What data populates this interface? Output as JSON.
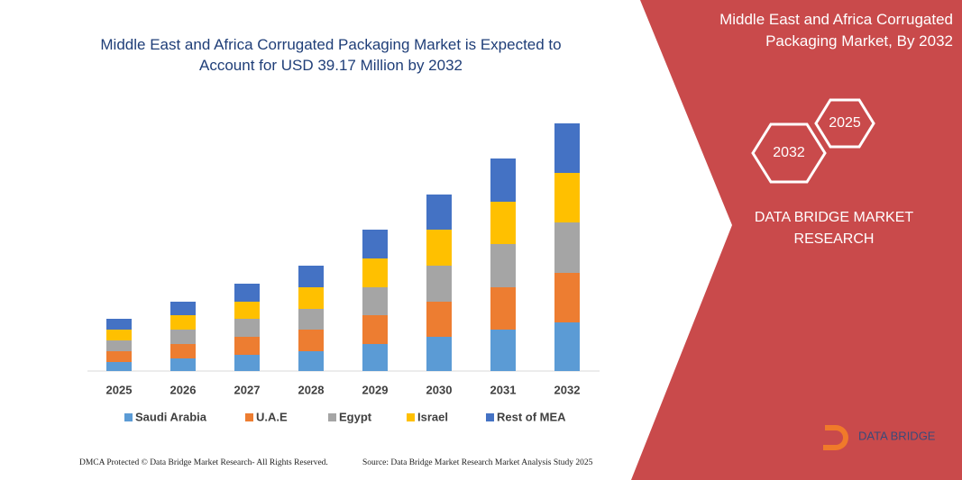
{
  "chart_data": {
    "type": "stacked-bar",
    "title": "Middle East and Africa Corrugated Packaging Market is Expected to Account for USD 39.17 Million by 2032",
    "categories": [
      "2025",
      "2026",
      "2027",
      "2028",
      "2029",
      "2030",
      "2031",
      "2032"
    ],
    "series": [
      {
        "name": "Saudi Arabia",
        "color": "#5b9bd5",
        "values": [
          10,
          14,
          18,
          22,
          30,
          38,
          46,
          54
        ]
      },
      {
        "name": "U.A.E",
        "color": "#ed7d31",
        "values": [
          12,
          16,
          20,
          24,
          32,
          39,
          47,
          55
        ]
      },
      {
        "name": "Egypt",
        "color": "#a5a5a5",
        "values": [
          12,
          16,
          20,
          23,
          31,
          40,
          48,
          56
        ]
      },
      {
        "name": "Israel",
        "color": "#ffc000",
        "values": [
          12,
          16,
          19,
          24,
          32,
          40,
          47,
          55
        ]
      },
      {
        "name": "Rest of MEA",
        "color": "#4472c4",
        "values": [
          12,
          15,
          20,
          24,
          32,
          39,
          48,
          55
        ]
      }
    ],
    "ylim": [
      0,
      300
    ]
  },
  "panel": {
    "heading": "Middle East and Africa Corrugated Packaging Market, By 2032",
    "hex_back": "2025",
    "hex_front": "2032",
    "brand": "DATA BRIDGE MARKET RESEARCH",
    "logo": "DATA BRIDGE"
  },
  "footer": {
    "left": "DMCA Protected © Data Bridge Market Research- All Rights Reserved.",
    "right": "Source: Data Bridge Market Research Market Analysis Study 2025"
  }
}
